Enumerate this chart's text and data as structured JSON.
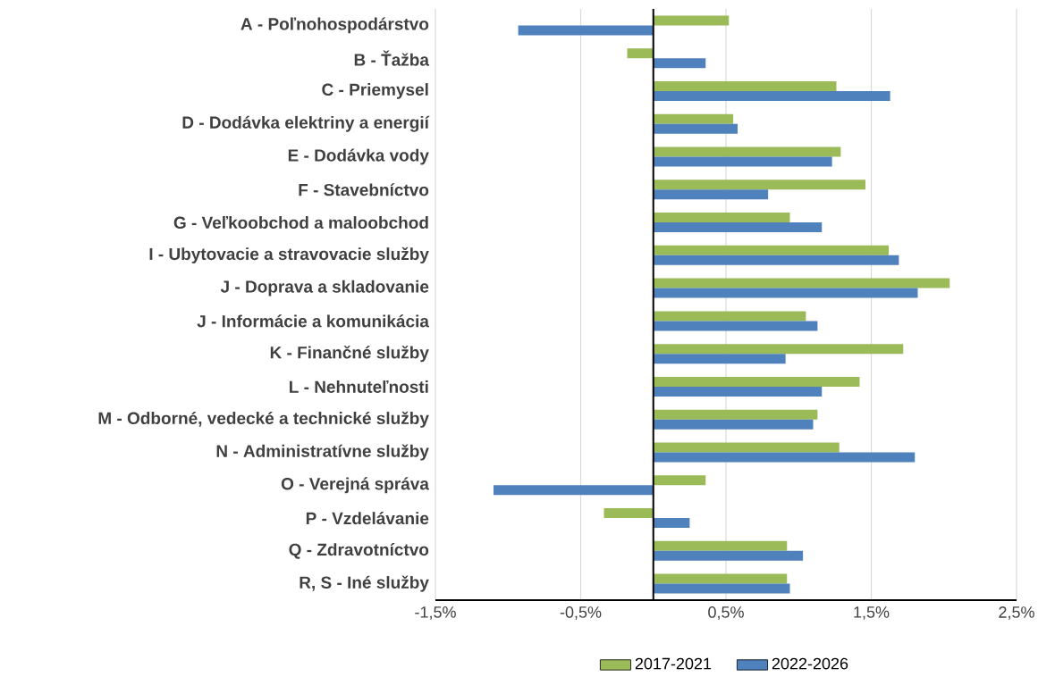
{
  "chart_data": {
    "type": "bar",
    "orientation": "horizontal",
    "categories": [
      "A - Poľnohospodárstvo",
      "B - Ťažba",
      "C - Priemysel",
      "D - Dodávka elektriny  a energií",
      "E - Dodávka vody",
      "F - Stavebníctvo",
      "G - Veľkoobchod a maloobchod",
      "I - Ubytovacie a stravovacie služby",
      "J - Doprava a skladovanie",
      "J - Informácie a komunikácia",
      "K - Finančné služby",
      "L - Nehnuteľnosti",
      "M - Odborné, vedecké a technické služby",
      "N - Administratívne služby",
      "O - Verejná správa",
      "P - Vzdelávanie",
      "Q - Zdravotníctvo",
      "R, S - Iné služby"
    ],
    "series": [
      {
        "name": "2017-2021",
        "color": "#9bbb59",
        "values": [
          0.52,
          -0.18,
          1.26,
          0.55,
          1.29,
          1.46,
          0.94,
          1.62,
          2.04,
          1.05,
          1.72,
          1.42,
          1.13,
          1.28,
          0.36,
          -0.34,
          0.92,
          0.92
        ]
      },
      {
        "name": "2022-2026",
        "color": "#4f81bd",
        "values": [
          -0.93,
          0.36,
          1.63,
          0.58,
          1.23,
          0.79,
          1.16,
          1.69,
          1.82,
          1.13,
          0.91,
          1.16,
          1.1,
          1.8,
          -1.1,
          0.25,
          1.03,
          0.94
        ]
      }
    ],
    "xlim": [
      -1.5,
      2.5
    ],
    "xticks": [
      {
        "value": -1.5,
        "label": "-1,5%"
      },
      {
        "value": -0.5,
        "label": "-0,5%"
      },
      {
        "value": 0.5,
        "label": "0,5%"
      },
      {
        "value": 1.5,
        "label": "1,5%"
      },
      {
        "value": 2.5,
        "label": "2,5%"
      }
    ],
    "grid": "x",
    "legend": "bottom"
  }
}
